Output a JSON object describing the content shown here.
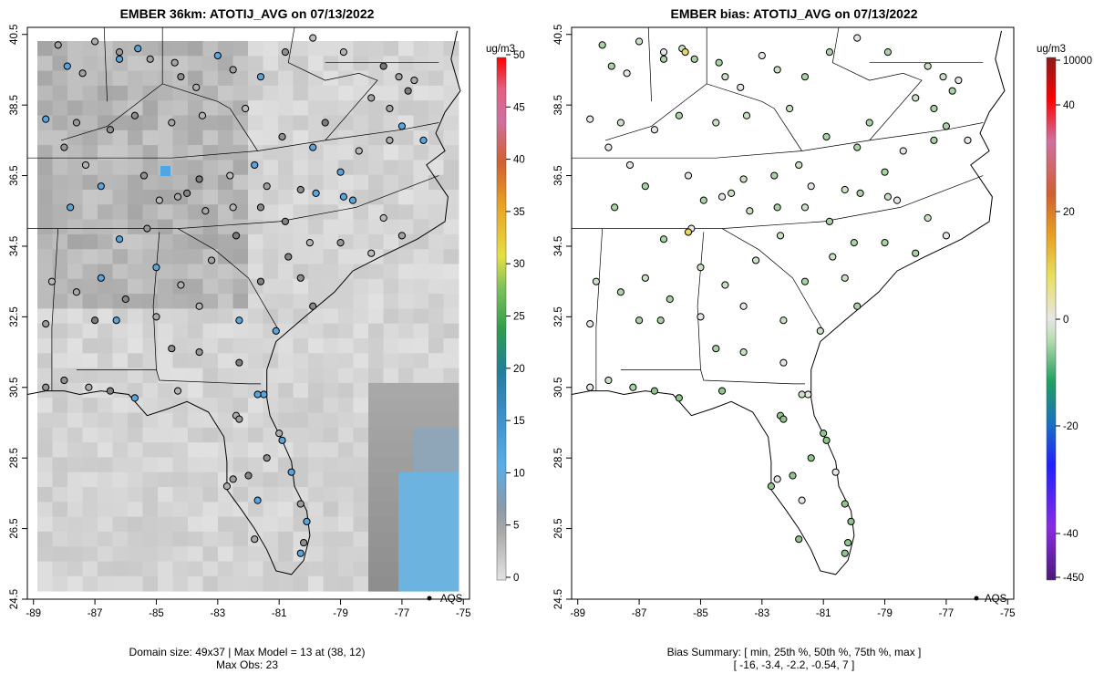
{
  "chart_data": [
    {
      "type": "heatmap",
      "title": "EMBER 36km: ATOTIJ_AVG on 07/13/2022",
      "colorbar_unit": "ug/m3",
      "colorbar_ticks": [
        "0",
        "5",
        "10",
        "15",
        "20",
        "25",
        "30",
        "35",
        "40",
        "45",
        "50"
      ],
      "x_ticks": [
        "-89",
        "-87",
        "-85",
        "-83",
        "-81",
        "-79",
        "-77",
        "-75"
      ],
      "y_ticks": [
        "24.5",
        "26.5",
        "28.5",
        "30.5",
        "32.5",
        "34.5",
        "36.5",
        "38.5",
        "40.5"
      ],
      "xlim": [
        -89.2,
        -74.8
      ],
      "ylim": [
        24.5,
        40.7
      ],
      "legend_label": "AQS",
      "caption_line1": "Domain size: 49x37 | Max Model = 13 at (38, 12)",
      "caption_line2": "Max Obs: 23",
      "domain_cols": 49,
      "domain_rows": 37,
      "max_model": 13,
      "max_obs": 23
    },
    {
      "type": "scatter",
      "title": "EMBER bias: ATOTIJ_AVG on 07/13/2022",
      "colorbar_unit": "ug/m3",
      "colorbar_ticks": [
        "10000",
        "40",
        "20",
        "0",
        "-20",
        "-40",
        "-450"
      ],
      "x_ticks": [
        "-89",
        "-87",
        "-85",
        "-83",
        "-81",
        "-79",
        "-77",
        "-75"
      ],
      "y_ticks": [
        "24.5",
        "26.5",
        "28.5",
        "30.5",
        "32.5",
        "34.5",
        "36.5",
        "38.5",
        "40.5"
      ],
      "xlim": [
        -89.2,
        -74.8
      ],
      "ylim": [
        24.5,
        40.7
      ],
      "legend_label": "AQS",
      "caption_line1": "Bias Summary: [ min, 25th %, 50th %, 75th %, max ]",
      "caption_line2": "[ -16,   -3.4,   -2.2,   -0.54,   7 ]",
      "bias_summary": [
        -16,
        -3.4,
        -2.2,
        -0.54,
        7
      ]
    }
  ]
}
